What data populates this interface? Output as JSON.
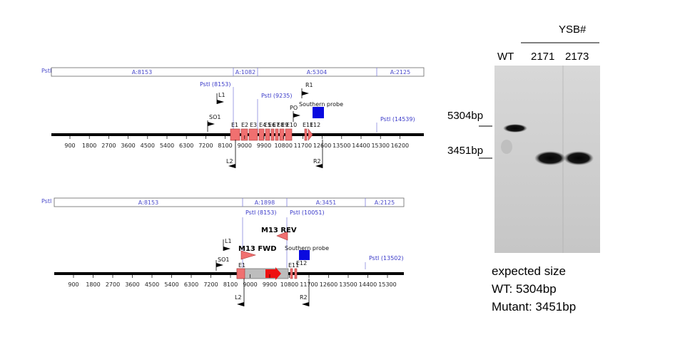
{
  "wt_map": {
    "enzyme_label": "PstI",
    "segments": [
      "A:8153",
      "A:1082",
      "A:5304",
      "A:2125"
    ],
    "sites": [
      "PstI (8153)",
      "PstI (9235)",
      "PstI (14539)"
    ],
    "primers": [
      "L1",
      "SO1",
      "R1",
      "PO",
      "L2",
      "R2"
    ],
    "exons": [
      "E1",
      "E2",
      "E3",
      "E4",
      "E5",
      "E6",
      "E7",
      "E8",
      "E9",
      "E10",
      "E11",
      "E12"
    ],
    "probe_label": "Southern probe",
    "ticks": [
      "900",
      "1800",
      "2700",
      "3600",
      "4500",
      "5400",
      "6300",
      "7200",
      "8100",
      "9000",
      "9900",
      "10800",
      "11700",
      "12600",
      "13500",
      "14400",
      "15300",
      "16200"
    ]
  },
  "mut_map": {
    "enzyme_label": "PstI",
    "segments": [
      "A:8153",
      "A:1898",
      "A:3451",
      "A:2125"
    ],
    "sites": [
      "PstI (8153)",
      "PstI (10051)",
      "PstI (13502)"
    ],
    "primers": [
      "L1",
      "SO1",
      "L2",
      "R2"
    ],
    "fwd_label": "M13 FWD",
    "rev_label": "M13 REV",
    "exons": [
      "E1",
      "E11",
      "E12"
    ],
    "probe_label": "Southern probe",
    "ticks": [
      "900",
      "1800",
      "2700",
      "3600",
      "4500",
      "5400",
      "6300",
      "7200",
      "8100",
      "9000",
      "9900",
      "10800",
      "11700",
      "12600",
      "13500",
      "14400",
      "15300"
    ]
  },
  "gel": {
    "group_label": "YSB#",
    "lanes": [
      "WT",
      "2171",
      "2173"
    ],
    "markers": [
      "5304bp",
      "3451bp"
    ]
  },
  "caption": {
    "line1": "expected size",
    "line2": "WT: 5304bp",
    "line3": "Mutant: 3451bp"
  },
  "colors": {
    "exon": "#f07070",
    "probe": "#0a0adf",
    "segment_border": "#8080dd",
    "cassette": "#bdbdbd",
    "arrow": "#ee1111"
  }
}
